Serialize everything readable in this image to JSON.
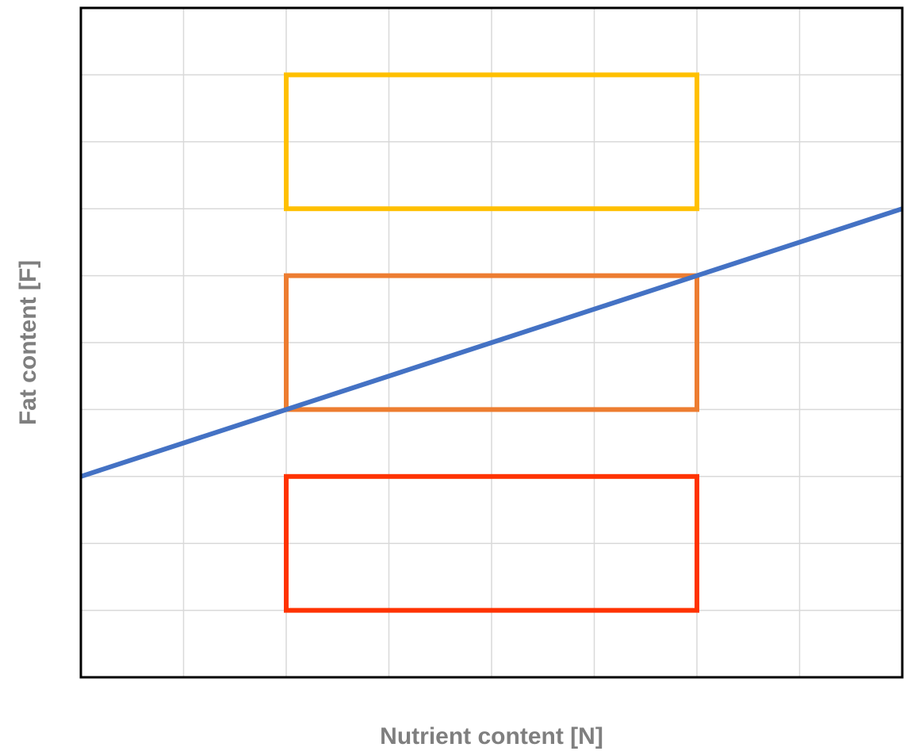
{
  "chart_data": {
    "type": "line",
    "title": "",
    "xlabel": "Nutrient content [N]",
    "ylabel": "Fat content [F]",
    "xlim": [
      0,
      8
    ],
    "ylim": [
      0,
      10
    ],
    "x_tick_labels": [],
    "y_tick_labels": [],
    "grid": true,
    "legend": "none",
    "series": [
      {
        "x": [
          0,
          8
        ],
        "y": [
          3,
          7
        ],
        "color": "#4472c4"
      }
    ],
    "regions": [
      {
        "x": [
          2,
          6
        ],
        "y": [
          1,
          3
        ],
        "color": "#ff3300"
      },
      {
        "x": [
          2,
          6
        ],
        "y": [
          4,
          6
        ],
        "color": "#ed7d31"
      },
      {
        "x": [
          2,
          6
        ],
        "y": [
          7,
          9
        ],
        "color": "#ffc000"
      }
    ],
    "colors": {
      "grid": "#d9d9d9",
      "frame": "#000000",
      "axis_title": "#7f7f7f"
    }
  }
}
